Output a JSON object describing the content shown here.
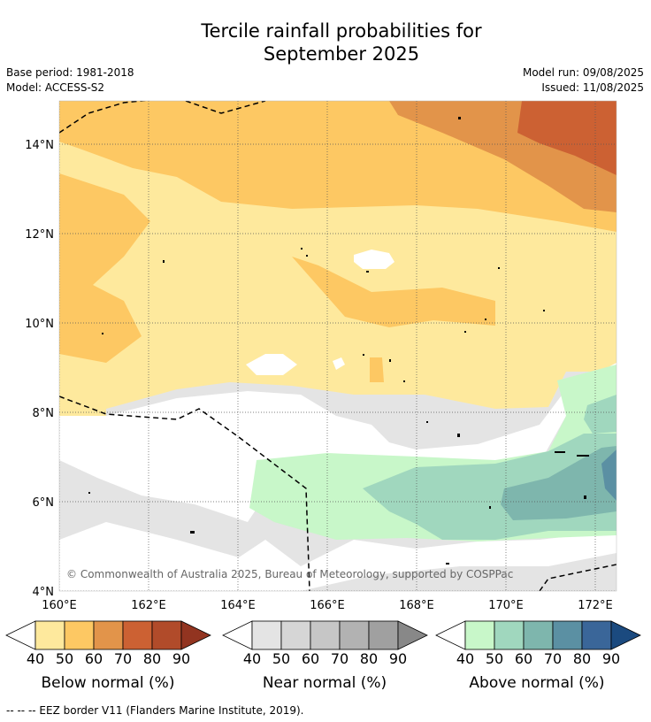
{
  "title_line1": "Tercile rainfall probabilities for",
  "title_line2": "September 2025",
  "base_period": "Base period: 1981-2018",
  "model": "Model: ACCESS-S2",
  "model_run": "Model run: 09/08/2025",
  "issued": "Issued: 11/08/2025",
  "copyright": "© Commonwealth of Australia 2025, Bureau of Meteorology, supported by COSPPac",
  "footer": "-- -- -- EEZ border V11 (Flanders Marine Institute, 2019).",
  "axes": {
    "lat_labels": [
      "14°N",
      "12°N",
      "10°N",
      "8°N",
      "6°N",
      "4°N"
    ],
    "lon_labels": [
      "160°E",
      "162°E",
      "164°E",
      "166°E",
      "168°E",
      "170°E",
      "172°E"
    ]
  },
  "legends": [
    {
      "label": "Below normal (%)",
      "ticks": [
        "40",
        "50",
        "60",
        "70",
        "80",
        "90"
      ],
      "colors": [
        "#fee99d",
        "#fdc863",
        "#e2944a",
        "#cc6133",
        "#b14b2a",
        "#923420"
      ]
    },
    {
      "label": "Near normal (%)",
      "ticks": [
        "40",
        "50",
        "60",
        "70",
        "80",
        "90"
      ],
      "colors": [
        "#e4e4e4",
        "#d6d6d6",
        "#c6c6c6",
        "#b2b2b2",
        "#a0a0a0",
        "#888888"
      ]
    },
    {
      "label": "Above normal (%)",
      "ticks": [
        "40",
        "50",
        "60",
        "70",
        "80",
        "90"
      ],
      "colors": [
        "#c8f7c9",
        "#a0d7be",
        "#7eb6ad",
        "#5b90a3",
        "#3a6699",
        "#1b4a7f"
      ]
    }
  ]
}
